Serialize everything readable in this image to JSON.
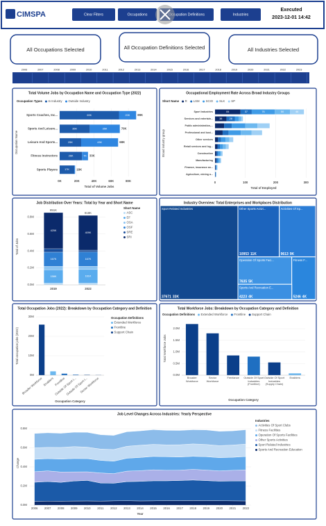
{
  "header": {
    "logo": "CIMSPA",
    "buttons": [
      "Clear Filters",
      "Occupations",
      "Occupation Definitions",
      "Industries"
    ],
    "executed_label": "Executed",
    "executed_time": "2023-12-01 14:42"
  },
  "slicers": [
    "All Occupations Selected",
    "All Occupation Definitions Selected",
    "All Industries Selected"
  ],
  "timeline": {
    "years": [
      "2006",
      "2007",
      "2008",
      "2009",
      "2010",
      "2011",
      "2012",
      "2013",
      "2014",
      "2015",
      "2016",
      "2017",
      "2018",
      "2019",
      "2020",
      "2021",
      "2022",
      "2023"
    ]
  },
  "chart_data": [
    {
      "type": "hbar",
      "title": "Total Volume Jobs by Occupation Name and Occupation Type (2022)",
      "legend_title": "Occupation Types",
      "x_label": "Total of Volume Jobs",
      "y_label": "Occupation Name",
      "categories": [
        "Sports Coaches, Inc...",
        "Sports And Leisure...",
        "Leisure And Sports...",
        "Fitness Instructors",
        "Sports Players"
      ],
      "series": [
        {
          "name": "In Industry",
          "color": "#1d5bab",
          "values": [
            69000,
            35000,
            25000,
            26000,
            17000
          ],
          "value_labels": [
            "69K",
            "35K",
            "25K",
            "26K",
            "17K"
          ]
        },
        {
          "name": "Outside Industry",
          "color": "#2f86e0",
          "values": [
            20000,
            35000,
            43000,
            7000,
            1000
          ],
          "value_labels": [
            "20K",
            "35K",
            "43K",
            "7K",
            null
          ]
        }
      ],
      "totals": [
        89000,
        70000,
        68000,
        33000,
        18000
      ],
      "total_labels": [
        "89K",
        "70K",
        "68K",
        "33K",
        "18K"
      ],
      "xlim": [
        0,
        92000
      ],
      "xticks": [
        {
          "value": 0,
          "label": "0K"
        },
        {
          "value": 20000,
          "label": "20K"
        },
        {
          "value": 40000,
          "label": "40K"
        },
        {
          "value": 60000,
          "label": "60K"
        },
        {
          "value": 80000,
          "label": "80K"
        }
      ]
    },
    {
      "type": "hbar",
      "title": "Occupational Employment Rate Across Broad Industry Groups",
      "legend_title": "Short Name",
      "x_label": "Total of Employed",
      "y_label": "Broad industry group",
      "categories": [
        "Sport industries",
        "Services and entertain...",
        "Public administration,...",
        "Professional and busi...",
        "Other services",
        "Retail services and log...",
        "Construction",
        "Manufacturing",
        "Finance, insurance an...",
        "Agriculture, mining a..."
      ],
      "series": [
        {
          "name": "R",
          "color": "#0b2a6b",
          "values": [
            84,
            38,
            30,
            25,
            10,
            8,
            5,
            4,
            2,
            1
          ],
          "value_labels": [
            "84",
            "38",
            null,
            null,
            null,
            null,
            null,
            null,
            null,
            null
          ]
        },
        {
          "name": "LSM",
          "color": "#1f6fc1",
          "values": [
            37,
            28,
            25,
            20,
            10,
            8,
            5,
            4,
            1,
            1
          ],
          "value_labels": [
            "37",
            "28",
            null,
            null,
            null,
            null,
            null,
            null,
            null,
            null
          ]
        },
        {
          "name": "SCIO",
          "color": "#3f9be6",
          "values": [
            76,
            12,
            45,
            40,
            15,
            10,
            6,
            5,
            2,
            1
          ],
          "value_labels": [
            "76",
            null,
            null,
            null,
            null,
            null,
            null,
            null,
            null,
            null
          ]
        },
        {
          "name": "SLK",
          "color": "#6cb8ef",
          "values": [
            50,
            8,
            40,
            35,
            12,
            10,
            5,
            4,
            2,
            1
          ],
          "value_labels": [
            "50",
            null,
            null,
            null,
            null,
            null,
            null,
            null,
            null,
            null
          ]
        },
        {
          "name": "SP",
          "color": "#9fd0f5",
          "values": [
            46,
            6,
            40,
            35,
            13,
            9,
            4,
            3,
            1,
            0
          ],
          "value_labels": [
            "46",
            null,
            null,
            null,
            null,
            null,
            null,
            null,
            null,
            null
          ]
        }
      ],
      "xlim": [
        0,
        320
      ],
      "xticks": [
        0,
        100,
        200,
        300
      ]
    },
    {
      "type": "column",
      "title": "Job Distribution Over Years: Total by Year and Short Name",
      "legend_title": "Short Name",
      "y_label": "Total of Jobs",
      "categories": [
        "2019",
        "2022"
      ],
      "series": [
        {
          "name": "ASC",
          "color": "#b9dcf6",
          "values": [
            20000,
            20000
          ]
        },
        {
          "name": "EF",
          "color": "#5aacee",
          "values": [
            158000,
            161000
          ],
          "value_labels": [
            "158K",
            "161K"
          ]
        },
        {
          "name": "OSA",
          "color": "#8cc4f2",
          "values": [
            40000,
            38000
          ]
        },
        {
          "name": "OSF",
          "color": "#2f80d4",
          "values": [
            167000,
            167000
          ],
          "value_labels": [
            "167K",
            "167K"
          ]
        },
        {
          "name": "SRE",
          "color": "#1a4f9c",
          "values": [
            41000,
            23000
          ]
        },
        {
          "name": "SRI",
          "color": "#0b2a6b",
          "values": [
            425000,
            409000
          ],
          "value_labels": [
            "425K",
            "409K"
          ]
        }
      ],
      "totals": [
        851000,
        818000
      ],
      "total_labels": [
        "851K",
        "818K"
      ],
      "ylim": [
        0,
        900000
      ],
      "yticks": [
        {
          "value": 0,
          "label": "0.0M"
        },
        {
          "value": 200000,
          "label": "0.2M"
        },
        {
          "value": 400000,
          "label": "0.4M"
        },
        {
          "value": 600000,
          "label": "0.6M"
        },
        {
          "value": 800000,
          "label": "0.8M"
        }
      ]
    },
    {
      "type": "treemap",
      "title": "Industry Overview: Total Enterprises and Workplaces Distribution",
      "categories": [
        "Sport Related Industries",
        "Other Sports Activi...",
        "Activities Of Sp...",
        "Operation Of Sports Faci...",
        "Fitness F...",
        "Sports And Recreation E..."
      ],
      "values": [
        37671,
        10953,
        9613,
        7635,
        5246,
        4223
      ],
      "values2": [
        33000,
        11000,
        9000,
        5000,
        4000,
        4000
      ],
      "value2_labels": [
        "33K",
        "11K",
        "9K",
        "5K",
        "4K",
        "4K"
      ],
      "colors": [
        "#12498f",
        "#1c64bd",
        "#2b7dd6",
        "#3f94e4",
        "#2a86dd",
        "#3a8fe2"
      ]
    },
    {
      "type": "column",
      "title": "Total Occupation Jobs (2022): Breakdown by Occupation Category and Definition",
      "legend_title": "Occupation Definitions",
      "x_label": "Occupation Category",
      "y_label": "Total occupation jobs (2022)",
      "legend": [
        {
          "name": "Extended Workforce",
          "color": "#6cb8ef"
        },
        {
          "name": "Frontline",
          "color": "#1f6fc1"
        },
        {
          "name": "Support Chain",
          "color": "#0b3f8a"
        }
      ],
      "categories": [
        "Broader Workforce",
        "Enablers",
        "Frontline",
        "Outside Of Sport I...",
        "Outside Of Sport I...",
        "Sector Workforce"
      ],
      "values": [
        26000000,
        2000000,
        800000,
        300000,
        200000,
        100000
      ],
      "colors": [
        "#0b3f8a",
        "#6cb8ef",
        "#1f6fc1",
        "#1f6fc1",
        "#0b3f8a",
        "#0b3f8a"
      ],
      "ylim": [
        0,
        30000000
      ],
      "yticks": [
        {
          "value": 0,
          "label": "0M"
        },
        {
          "value": 10000000,
          "label": "10M"
        },
        {
          "value": 20000000,
          "label": "20M"
        },
        {
          "value": 30000000,
          "label": "30M"
        }
      ]
    },
    {
      "type": "column",
      "title": "Total Workforce Jobs: Breakdown by Occupation Category and Definition",
      "legend_title": "Occupation Definitions",
      "x_label": "Occupation Category",
      "y_label": "Total Workforce Jobs",
      "legend": [
        {
          "name": "Extended Workforce",
          "color": "#6cb8ef"
        },
        {
          "name": "Frontline",
          "color": "#1f6fc1"
        },
        {
          "name": "Support Chain",
          "color": "#0b3f8a"
        }
      ],
      "categories": [
        "Broader Workforce",
        "Sector Workforce",
        "Freelance",
        "Outside Of Sport Industries (Frontline)",
        "Outside Of Sport Industries (Supply Chain)",
        "Enablers"
      ],
      "values": [
        2200000,
        1800000,
        850000,
        800000,
        550000,
        80000
      ],
      "colors": [
        "#0b3f8a",
        "#0b3f8a",
        "#0b3f8a",
        "#1f6fc1",
        "#0b3f8a",
        "#6cb8ef"
      ],
      "ylim": [
        0,
        2300000
      ],
      "yticks": [
        {
          "value": 0,
          "label": "0.0M"
        },
        {
          "value": 500000,
          "label": "0.5M"
        },
        {
          "value": 1000000,
          "label": "1.0M"
        },
        {
          "value": 1500000,
          "label": "1.5M"
        },
        {
          "value": 2000000,
          "label": "2.0M"
        }
      ]
    },
    {
      "type": "area",
      "title": "Job Level Changes Across Industries: Yearly Perspective",
      "legend_title": "Industries",
      "x_label": "Year",
      "y_label": "Change",
      "x": [
        2006,
        2007,
        2008,
        2009,
        2010,
        2011,
        2012,
        2013,
        2014,
        2015,
        2016,
        2017,
        2018,
        2019,
        2020,
        2021,
        2022
      ],
      "series": [
        {
          "name": "Activities Of Sport Clubs",
          "color": "#8cbcea",
          "values": [
            150000,
            152000,
            148000,
            150000,
            155000,
            150000,
            148000,
            152000,
            150000,
            154000,
            152000,
            150000,
            148000,
            152000,
            150000,
            148000,
            150000
          ]
        },
        {
          "name": "Fitness Facilities",
          "color": "#c2dcf5",
          "values": [
            120000,
            118000,
            122000,
            125000,
            120000,
            118000,
            122000,
            125000,
            128000,
            126000,
            124000,
            128000,
            130000,
            128000,
            126000,
            128000,
            130000
          ]
        },
        {
          "name": "Operation Of Sports Facilities",
          "color": "#5fa8ea",
          "values": [
            130000,
            128000,
            135000,
            140000,
            138000,
            132000,
            130000,
            135000,
            138000,
            140000,
            142000,
            138000,
            136000,
            140000,
            138000,
            136000,
            140000
          ]
        },
        {
          "name": "Other Sports Activities",
          "color": "#aab0e8",
          "values": [
            110000,
            112000,
            108000,
            95000,
            90000,
            105000,
            100000,
            110000,
            112000,
            115000,
            110000,
            108000,
            112000,
            110000,
            108000,
            112000,
            115000
          ]
        },
        {
          "name": "Sport Related Industries",
          "color": "#1b5aa8",
          "values": [
            200000,
            205000,
            198000,
            210000,
            215000,
            190000,
            185000,
            200000,
            205000,
            210000,
            208000,
            212000,
            215000,
            210000,
            205000,
            208000,
            210000
          ]
        },
        {
          "name": "Sports And Recreation Education",
          "color": "#0b2a6b",
          "values": [
            40000,
            42000,
            41000,
            43000,
            44000,
            42000,
            45000,
            46000,
            44000,
            45000,
            47000,
            46000,
            48000,
            47000,
            46000,
            45000,
            44000
          ]
        }
      ],
      "xlim": [
        2005.6,
        2022.4
      ],
      "xticks": [
        2006,
        2007,
        2008,
        2009,
        2010,
        2011,
        2012,
        2013,
        2014,
        2015,
        2016,
        2017,
        2018,
        2019,
        2020,
        2021,
        2022
      ],
      "ylim": [
        0,
        880000
      ],
      "yticks": [
        {
          "value": 0,
          "label": "0.0M"
        },
        {
          "value": 200000,
          "label": "0.2M"
        },
        {
          "value": 400000,
          "label": "0.4M"
        },
        {
          "value": 600000,
          "label": "0.6M"
        },
        {
          "value": 800000,
          "label": "0.8M"
        }
      ]
    }
  ]
}
